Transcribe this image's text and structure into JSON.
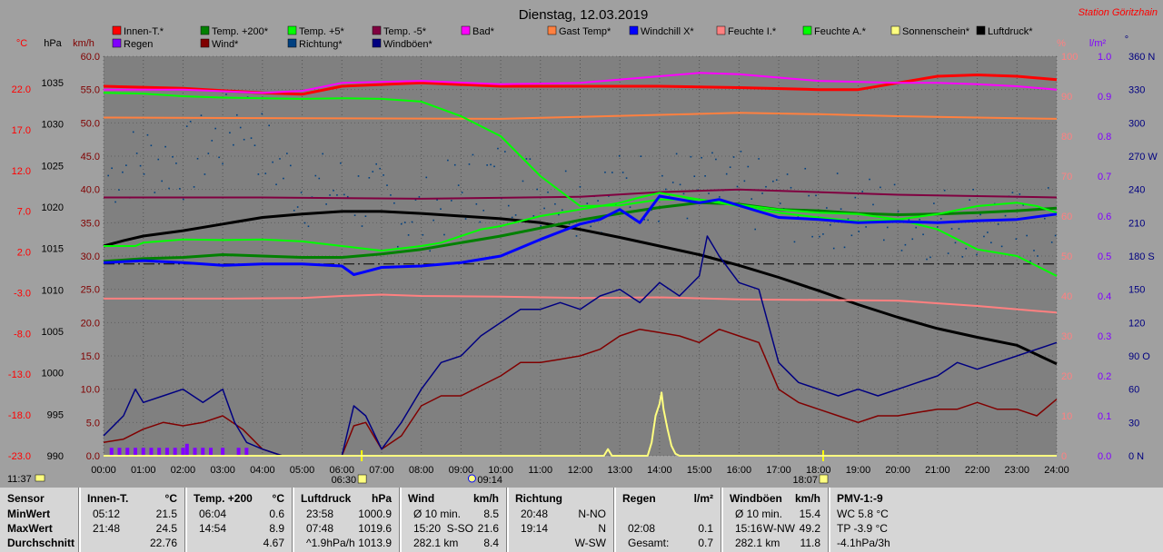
{
  "title": "Dienstag, 12.03.2019",
  "station": "Station Göritzhain",
  "axis_units": {
    "temp": "°C",
    "pressure": "hPa",
    "speed": "km/h",
    "percent": "%",
    "rain": "l/m²",
    "dir": "°"
  },
  "legend": [
    {
      "label": "Innen-T.*",
      "color": "#ff0000"
    },
    {
      "label": "Temp. +200*",
      "color": "#008000"
    },
    {
      "label": "Temp. +5*",
      "color": "#00ff00"
    },
    {
      "label": "Temp. -5*",
      "color": "#800040"
    },
    {
      "label": "Bad*",
      "color": "#ff00ff"
    },
    {
      "label": "Gast Temp*",
      "color": "#ff8040"
    },
    {
      "label": "Windchill X*",
      "color": "#0000ff"
    },
    {
      "label": "Feuchte I.*",
      "color": "#ff8080"
    },
    {
      "label": "Feuchte A.*",
      "color": "#00ff00"
    },
    {
      "label": "Sonnenschein*",
      "color": "#ffff80"
    },
    {
      "label": "Luftdruck*",
      "color": "#000000"
    },
    {
      "label": "Regen",
      "color": "#8000ff"
    },
    {
      "label": "Wind*",
      "color": "#800000"
    },
    {
      "label": "Richtung*",
      "color": "#004080"
    },
    {
      "label": "Windböen*",
      "color": "#000080"
    }
  ],
  "sun_markers": {
    "sunrise": "06:30",
    "noon": "09:14",
    "sunset": "18:07",
    "corner": "11:37"
  },
  "chart_data": {
    "type": "line",
    "x_ticks": [
      "00:00",
      "01:00",
      "02:00",
      "03:00",
      "04:00",
      "05:00",
      "06:00",
      "07:00",
      "08:00",
      "09:00",
      "10:00",
      "11:00",
      "12:00",
      "13:00",
      "14:00",
      "15:00",
      "16:00",
      "17:00",
      "18:00",
      "19:00",
      "20:00",
      "21:00",
      "22:00",
      "23:00",
      "24:00"
    ],
    "axes": {
      "celsius": [
        "22.0",
        "17.0",
        "12.0",
        "7.0",
        "2.0",
        "-3.0",
        "-8.0",
        "-13.0",
        "-18.0",
        "-23.0"
      ],
      "hpa": [
        "1035",
        "1030",
        "1025",
        "1020",
        "1015",
        "1010",
        "1005",
        "1000",
        "995",
        "990"
      ],
      "kmh": [
        "60.0",
        "55.0",
        "50.0",
        "45.0",
        "40.0",
        "35.0",
        "30.0",
        "25.0",
        "20.0",
        "15.0",
        "10.0",
        "5.0",
        "0.0"
      ],
      "percent": [
        "100",
        "90",
        "80",
        "70",
        "60",
        "50",
        "40",
        "30",
        "20",
        "10",
        "0"
      ],
      "rain": [
        "1.0",
        "0.9",
        "0.8",
        "0.7",
        "0.6",
        "0.5",
        "0.4",
        "0.3",
        "0.2",
        "0.1",
        "0.0"
      ],
      "direction": [
        "360 N",
        "330",
        "300",
        "270 W",
        "240",
        "210",
        "180 S",
        "150",
        "120",
        "90 O",
        "60",
        "30",
        "0 N"
      ]
    },
    "ylim_kmh": [
      0,
      60
    ],
    "series": [
      {
        "name": "Innen-T.*",
        "color": "#ff0000",
        "unit": "km/h-axis",
        "t": [
          0,
          2,
          4,
          5,
          6,
          8,
          10,
          12,
          14,
          16,
          18,
          19,
          20,
          21,
          22,
          23,
          24
        ],
        "v": [
          55.5,
          55.2,
          54.5,
          54.3,
          55.5,
          56,
          55.5,
          55.5,
          55.5,
          55.3,
          55,
          55,
          56,
          57,
          57.2,
          57,
          56.5
        ]
      },
      {
        "name": "Bad*",
        "color": "#ff00ff",
        "unit": "km/h-axis",
        "t": [
          0,
          2,
          4,
          5,
          6,
          8,
          10,
          12,
          14,
          15,
          16,
          18,
          20,
          21,
          22,
          23,
          24
        ],
        "v": [
          55,
          55,
          54.5,
          54.8,
          56,
          56.3,
          55.8,
          56,
          57,
          57.5,
          57.3,
          56.3,
          56,
          56,
          55.8,
          55.5,
          55
        ]
      },
      {
        "name": "Gast Temp*",
        "color": "#ff8040",
        "unit": "km/h-axis",
        "t": [
          0,
          5,
          10,
          12,
          14,
          16,
          18,
          20,
          22,
          24
        ],
        "v": [
          50.8,
          50.7,
          50.6,
          50.9,
          51.2,
          51.5,
          51.3,
          51,
          50.8,
          50.6
        ]
      },
      {
        "name": "Temp. -5*",
        "color": "#800040",
        "unit": "km/h-axis",
        "t": [
          0,
          4,
          8,
          12,
          14,
          16,
          18,
          20,
          22,
          24
        ],
        "v": [
          38.8,
          38.8,
          38.6,
          38.9,
          39.6,
          40,
          39.6,
          39.2,
          39,
          38.8
        ]
      },
      {
        "name": "Luftdruck*",
        "color": "#000000",
        "unit": "km/h-axis",
        "t": [
          0,
          0.5,
          1,
          2,
          3,
          4,
          5,
          6,
          7,
          8,
          9,
          10,
          11,
          12,
          13,
          14,
          15,
          16,
          17,
          18,
          19,
          20,
          21,
          22,
          23,
          24
        ],
        "v": [
          31.5,
          32.3,
          33,
          33.8,
          34.8,
          35.8,
          36.3,
          36.7,
          36.7,
          36.4,
          36,
          35.6,
          35,
          34,
          32.8,
          31.5,
          30.2,
          28.6,
          26.8,
          24.8,
          22.7,
          20.8,
          19.1,
          17.8,
          16.6,
          13.8
        ]
      },
      {
        "name": "Temp. +200*",
        "color": "#008000",
        "unit": "km/h-axis",
        "t": [
          0,
          1,
          2,
          3,
          4,
          5,
          6,
          7,
          8,
          9,
          10,
          11,
          12,
          13,
          14,
          15,
          16,
          17,
          18,
          19,
          20,
          21,
          22,
          23,
          24
        ],
        "v": [
          29.2,
          29.6,
          29.8,
          30.2,
          30,
          29.8,
          29.8,
          30.3,
          31,
          32,
          33,
          34.2,
          35.4,
          36.4,
          37.3,
          38,
          37.8,
          37,
          36.8,
          36.4,
          36.2,
          36.3,
          36.5,
          36.8,
          37.2
        ]
      },
      {
        "name": "Temp. +5*",
        "color": "#00ff00",
        "unit": "km/h-axis",
        "t": [
          0,
          0.8,
          1,
          2,
          3,
          4,
          5,
          6,
          7,
          8,
          8.5,
          9,
          9.5,
          10,
          11,
          12,
          12.5,
          13,
          13.5,
          14,
          15,
          16,
          17,
          18,
          19,
          20,
          21,
          22,
          23,
          23.5,
          24
        ],
        "v": [
          31.5,
          31.5,
          32,
          32.5,
          32.4,
          32.5,
          32.2,
          31.5,
          30.8,
          31.5,
          32,
          33,
          34,
          34.5,
          36,
          37,
          37.5,
          38,
          38.8,
          39.5,
          38.5,
          37.5,
          36.5,
          35.8,
          35.2,
          35.5,
          36.3,
          37.5,
          38,
          37.5,
          36.5
        ]
      },
      {
        "name": "Feuchte A.*",
        "color": "#00ff00",
        "unit": "km/h-axis",
        "t": [
          0,
          1,
          2,
          3,
          4,
          5,
          6,
          7,
          8,
          9,
          10,
          11,
          12,
          13,
          14,
          15,
          16,
          17,
          18,
          19,
          20,
          21,
          22,
          23,
          24
        ],
        "v": [
          54.5,
          54.4,
          54,
          53.8,
          53.7,
          53.6,
          53.7,
          53.6,
          53.2,
          51,
          48,
          42,
          37.5,
          37.6,
          38.5,
          38.5,
          37.7,
          37,
          36.5,
          36.3,
          35.5,
          34,
          31,
          30,
          27
        ]
      },
      {
        "name": "Windchill X*",
        "color": "#0000ff",
        "unit": "km/h-axis",
        "t": [
          0,
          1,
          2,
          3,
          4,
          5,
          6,
          6.3,
          6.5,
          7,
          8,
          9,
          10,
          11,
          12,
          12.5,
          13,
          13.5,
          14,
          14.5,
          15,
          15.5,
          16,
          17,
          18,
          19,
          20,
          21,
          22,
          23,
          24
        ],
        "v": [
          29,
          29.3,
          29,
          28.6,
          28.8,
          28.8,
          28.5,
          27.2,
          27.5,
          28.3,
          28.5,
          29,
          30,
          32.5,
          34.8,
          35.5,
          37,
          35,
          39,
          38.5,
          38,
          38.5,
          37.6,
          35.8,
          35.5,
          35,
          35.2,
          35,
          35.3,
          35.5,
          36.3
        ]
      },
      {
        "name": "Feuchte I.*",
        "color": "#ff8080",
        "unit": "km/h-axis",
        "t": [
          0,
          3,
          5,
          6,
          7,
          8,
          10,
          12,
          14,
          16,
          18,
          20,
          22,
          24
        ],
        "v": [
          23.6,
          23.6,
          23.7,
          24,
          24.2,
          24,
          23.9,
          23.7,
          23.8,
          23.5,
          23.4,
          23.3,
          22.5,
          21.5
        ]
      },
      {
        "name": "Wind*",
        "color": "#800000",
        "unit": "km/h-axis",
        "t": [
          0,
          0.5,
          1,
          1.5,
          2,
          2.5,
          3,
          3.5,
          4,
          4.5,
          5,
          5.5,
          6,
          6.3,
          6.6,
          7,
          7.5,
          8,
          8.5,
          9,
          9.5,
          10,
          10.5,
          11,
          11.5,
          12,
          12.5,
          13,
          13.5,
          14,
          14.5,
          15,
          15.5,
          16,
          16.5,
          17,
          17.5,
          18,
          18.5,
          19,
          19.5,
          20,
          20.5,
          21,
          21.5,
          22,
          22.5,
          23,
          23.5,
          24
        ],
        "v": [
          2,
          2.5,
          4,
          5,
          4.5,
          5,
          6,
          4,
          1,
          0,
          0,
          0,
          0,
          4.5,
          5,
          1,
          3,
          7.5,
          9,
          9,
          10.5,
          12,
          14,
          14,
          14.5,
          15,
          16,
          18,
          19,
          18.5,
          18,
          17,
          19,
          18,
          17,
          10,
          8,
          7,
          6,
          5,
          6,
          6,
          6.5,
          7,
          7,
          8,
          7,
          7,
          6,
          8.5
        ]
      },
      {
        "name": "Windböen*",
        "color": "#000080",
        "unit": "km/h-axis",
        "t": [
          0,
          0.5,
          0.8,
          1,
          1.5,
          2,
          2.5,
          3,
          3.3,
          3.6,
          4,
          4.5,
          5,
          6,
          6.3,
          6.6,
          7,
          7.5,
          8,
          8.5,
          9,
          9.5,
          10,
          10.5,
          11,
          11.5,
          12,
          12.5,
          13,
          13.5,
          14,
          14.5,
          15,
          15.2,
          15.5,
          16,
          16.5,
          17,
          17.5,
          18,
          18.5,
          19,
          19.5,
          20,
          20.5,
          21,
          21.5,
          22,
          22.5,
          23,
          23.5,
          24
        ],
        "v": [
          3,
          6,
          10,
          8,
          9,
          10,
          8,
          10,
          5,
          2,
          1,
          0,
          0,
          0,
          7.5,
          6,
          1,
          5,
          10,
          14,
          15,
          18,
          20,
          22,
          22,
          23,
          22,
          24,
          25,
          23,
          26,
          24,
          27,
          33,
          30,
          26,
          25,
          14,
          11,
          10,
          9,
          10,
          9,
          10,
          11,
          12,
          14,
          13,
          14,
          15,
          16,
          17
        ]
      },
      {
        "name": "Sonnenschein*",
        "color": "#ffff80",
        "unit": "km/h-axis",
        "t": [
          0,
          12.6,
          12.7,
          12.8,
          13.3,
          13.7,
          13.8,
          13.9,
          14,
          14.05,
          14.1,
          14.2,
          14.3,
          14.4,
          14.5,
          24
        ],
        "v": [
          0,
          0,
          1,
          0,
          0,
          0,
          2,
          6,
          7.8,
          9.5,
          7,
          4,
          1.5,
          0.3,
          0,
          0
        ]
      },
      {
        "name": "Regen",
        "color": "#8000ff",
        "unit": "bars",
        "t": [
          0.2,
          0.4,
          0.6,
          0.8,
          1.0,
          1.2,
          1.4,
          1.6,
          1.8,
          2.0,
          2.1,
          2.3,
          2.5,
          2.7,
          3.0,
          3.4,
          3.6
        ],
        "v": [
          0.02,
          0.02,
          0.02,
          0.02,
          0.02,
          0.02,
          0.02,
          0.02,
          0.02,
          0.02,
          0.03,
          0.02,
          0.02,
          0.02,
          0.02,
          0.02,
          0.02
        ]
      }
    ],
    "scatter_direction": {
      "name": "Richtung*",
      "color": "#004080"
    }
  },
  "table": [
    {
      "title": "Sensor",
      "unit": "",
      "rows": [
        [
          "MinWert",
          "",
          ""
        ],
        [
          "MaxWert",
          "",
          ""
        ],
        [
          "Durchschnitt",
          "",
          ""
        ]
      ]
    },
    {
      "title": "Innen-T.",
      "unit": "°C",
      "rows": [
        [
          "05:12",
          "",
          "21.5"
        ],
        [
          "21:48",
          "",
          "24.5"
        ],
        [
          "",
          "",
          "22.76"
        ]
      ]
    },
    {
      "title": "Temp. +200",
      "unit": "°C",
      "rows": [
        [
          "06:04",
          "",
          "0.6"
        ],
        [
          "14:54",
          "",
          "8.9"
        ],
        [
          "",
          "",
          "4.67"
        ]
      ]
    },
    {
      "title": "Luftdruck",
      "unit": "hPa",
      "rows": [
        [
          "23:58",
          "",
          "1000.9"
        ],
        [
          "07:48",
          "",
          "1019.6"
        ],
        [
          "^1.9hPa/h",
          "",
          "1013.9"
        ]
      ]
    },
    {
      "title": "Wind",
      "unit": "km/h",
      "rows": [
        [
          "Ø 10 min.",
          "",
          "8.5"
        ],
        [
          "15:20",
          "S-SO",
          "21.6"
        ],
        [
          "282.1 km",
          "",
          "8.4"
        ]
      ]
    },
    {
      "title": "Richtung",
      "unit": "",
      "rows": [
        [
          "20:48",
          "",
          "N-NO"
        ],
        [
          "19:14",
          "",
          "N"
        ],
        [
          "",
          "",
          "W-SW"
        ]
      ]
    },
    {
      "title": "Regen",
      "unit": "l/m²",
      "rows": [
        [
          "",
          "",
          ""
        ],
        [
          "02:08",
          "",
          "0.1"
        ],
        [
          "Gesamt:",
          "",
          "0.7"
        ]
      ]
    },
    {
      "title": "Windböen",
      "unit": "km/h",
      "rows": [
        [
          "Ø 10 min.",
          "",
          "15.4"
        ],
        [
          "15:16",
          "W-NW",
          "49.2"
        ],
        [
          "282.1 km",
          "",
          "11.8"
        ]
      ]
    },
    {
      "title": "PMV-1:-9",
      "unit": "",
      "rows": [
        [
          "WC 5.8 °C",
          "",
          ""
        ],
        [
          "TP -3.9 °C",
          "",
          ""
        ],
        [
          "-4.1hPa/3h",
          "",
          ""
        ]
      ]
    }
  ]
}
